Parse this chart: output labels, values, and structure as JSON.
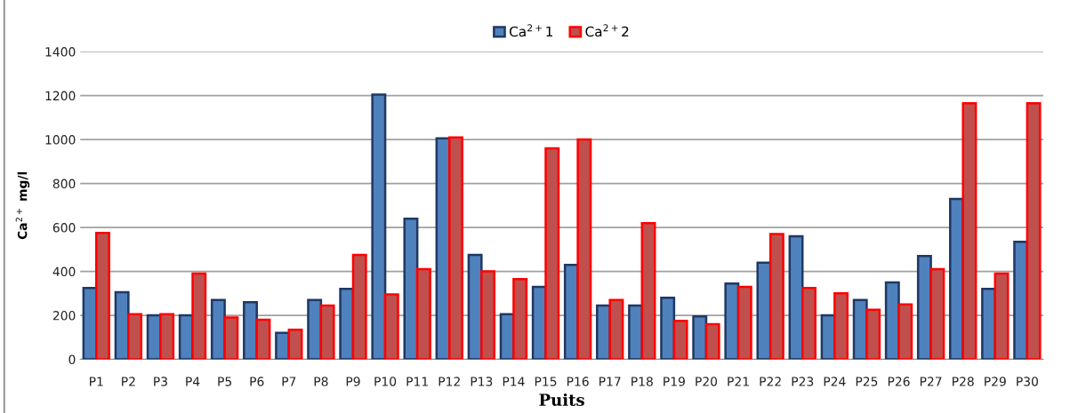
{
  "chart_data": {
    "type": "bar",
    "xlabel": "Puits",
    "ylabel": "Ca$^{2+}$ mg/l",
    "categories": [
      "P1",
      "P2",
      "P3",
      "P4",
      "P5",
      "P6",
      "P7",
      "P8",
      "P9",
      "P10",
      "P11",
      "P12",
      "P13",
      "P14",
      "P15",
      "P16",
      "P17",
      "P18",
      "P19",
      "P20",
      "P21",
      "P22",
      "P23",
      "P24",
      "P25",
      "P26",
      "P27",
      "P28",
      "P29",
      "P30"
    ],
    "series": [
      {
        "name": "Ca$^{2+}$1",
        "color": "#4f81bd",
        "values": [
          325,
          305,
          200,
          200,
          270,
          260,
          120,
          270,
          320,
          1205,
          640,
          1005,
          475,
          205,
          330,
          430,
          245,
          245,
          280,
          195,
          345,
          440,
          560,
          200,
          270,
          350,
          470,
          730,
          320,
          535
        ]
      },
      {
        "name": "Ca$^{2+}$2",
        "color": "#c0504d",
        "values": [
          575,
          205,
          205,
          390,
          190,
          180,
          135,
          245,
          475,
          295,
          410,
          1010,
          400,
          365,
          960,
          1000,
          270,
          620,
          175,
          160,
          330,
          570,
          325,
          300,
          225,
          250,
          410,
          1165,
          390,
          1165
        ]
      }
    ],
    "ylim": [
      0,
      1400
    ],
    "yticks": [
      0,
      200,
      400,
      600,
      800,
      1000,
      1200,
      1400
    ],
    "grid": "y",
    "legend": "top"
  }
}
